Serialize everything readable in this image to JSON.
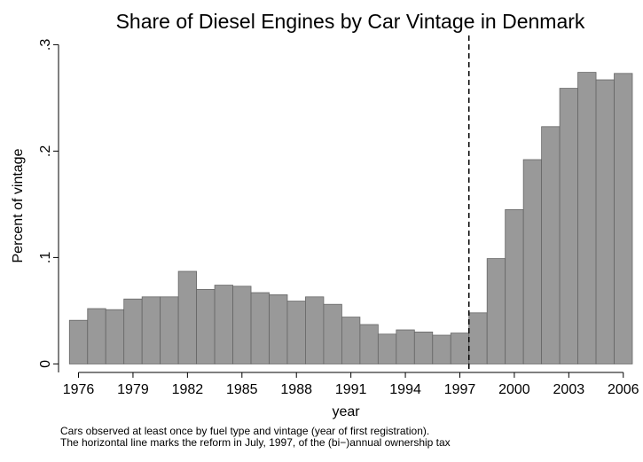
{
  "chart_data": {
    "type": "histogram",
    "title": "Share of Diesel Engines by Car Vintage in Denmark",
    "x_label": "year",
    "y_label": "Percent of vintage",
    "notes": [
      "Cars observed at least once by fuel type and vintage (year of first registration).",
      "The horizontal line marks the reform in July, 1997, of the (bi−)annual ownership tax"
    ],
    "x": [
      1976,
      1977,
      1978,
      1979,
      1980,
      1981,
      1982,
      1983,
      1984,
      1985,
      1986,
      1987,
      1988,
      1989,
      1990,
      1991,
      1992,
      1993,
      1994,
      1995,
      1996,
      1997,
      1998,
      1999,
      2000,
      2001,
      2002,
      2003,
      2004,
      2005,
      2006
    ],
    "values": [
      0.041,
      0.052,
      0.051,
      0.061,
      0.063,
      0.063,
      0.087,
      0.07,
      0.074,
      0.073,
      0.067,
      0.065,
      0.059,
      0.063,
      0.056,
      0.044,
      0.037,
      0.028,
      0.032,
      0.03,
      0.027,
      0.029,
      0.048,
      0.099,
      0.145,
      0.192,
      0.223,
      0.259,
      0.274,
      0.267,
      0.273
    ],
    "color": "#999999",
    "reference_line": 1997.5,
    "xlim": [
      1974.9,
      2006.5
    ],
    "xticks": [
      1976,
      1979,
      1982,
      1985,
      1988,
      1991,
      1994,
      1997,
      2000,
      2003,
      2006
    ],
    "ylim": [
      -0.008,
      0.317
    ],
    "yticks": [
      0,
      {
        "value": 0.1,
        "label": ".1"
      },
      {
        "value": 0.2,
        "label": ".2"
      },
      {
        "value": 0.3,
        "label": ".3"
      }
    ]
  }
}
